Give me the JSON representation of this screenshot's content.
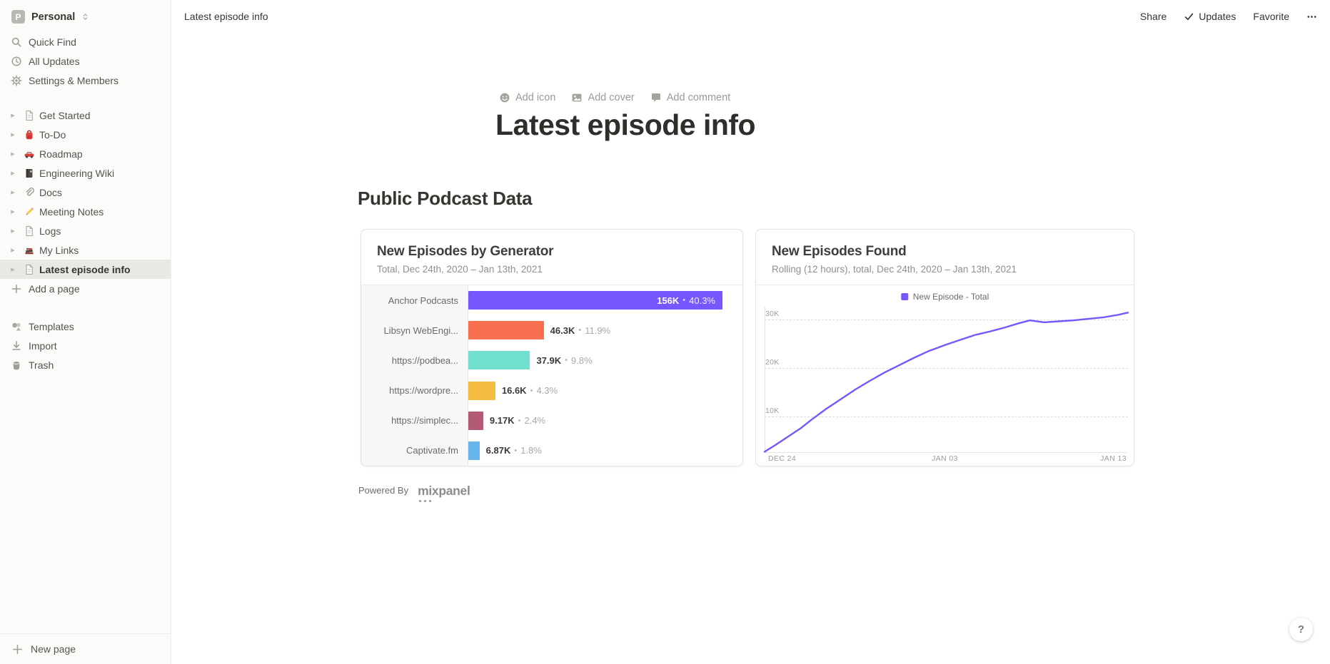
{
  "sidebar": {
    "workspace": {
      "initial": "P",
      "name": "Personal",
      "switcher_icon": "chevron-updown-icon"
    },
    "menu": [
      {
        "icon": "search-icon",
        "label": "Quick Find"
      },
      {
        "icon": "clock-icon",
        "label": "All Updates"
      },
      {
        "icon": "gear-icon",
        "label": "Settings & Members"
      }
    ],
    "pages": [
      {
        "icon": "page-icon",
        "label": "Get Started",
        "selected": false
      },
      {
        "icon": "backpack-icon",
        "label": "To-Do",
        "selected": false
      },
      {
        "icon": "car-icon",
        "label": "Roadmap",
        "selected": false
      },
      {
        "icon": "notebook-icon",
        "label": "Engineering Wiki",
        "selected": false
      },
      {
        "icon": "paperclip-icon",
        "label": "Docs",
        "selected": false
      },
      {
        "icon": "pencil-icon",
        "label": "Meeting Notes",
        "selected": false
      },
      {
        "icon": "page-icon",
        "label": "Logs",
        "selected": false
      },
      {
        "icon": "books-icon",
        "label": "My Links",
        "selected": false
      },
      {
        "icon": "page-icon",
        "label": "Latest episode info",
        "selected": true
      }
    ],
    "add_page": {
      "icon": "plus-icon",
      "label": "Add a page"
    },
    "tools": [
      {
        "icon": "templates-icon",
        "label": "Templates"
      },
      {
        "icon": "import-icon",
        "label": "Import"
      },
      {
        "icon": "trash-icon",
        "label": "Trash"
      }
    ],
    "new_page": {
      "icon": "plus-icon",
      "label": "New page"
    }
  },
  "topbar": {
    "breadcrumb": "Latest episode info",
    "actions": [
      {
        "name": "share",
        "icon": null,
        "label": "Share"
      },
      {
        "name": "updates",
        "icon": "check-icon",
        "label": "Updates"
      },
      {
        "name": "favorite",
        "icon": null,
        "label": "Favorite"
      },
      {
        "name": "more",
        "icon": "more-icon",
        "label": ""
      }
    ]
  },
  "page": {
    "actions": [
      {
        "icon": "smiley-icon",
        "label": "Add icon"
      },
      {
        "icon": "image-icon",
        "label": "Add cover"
      },
      {
        "icon": "comment-icon",
        "label": "Add comment"
      }
    ],
    "title": "Latest episode info",
    "heading": "Public Podcast Data",
    "powered_by": "Powered By",
    "logo_text": "mixpanel"
  },
  "chart_data": [
    {
      "type": "bar",
      "orientation": "horizontal",
      "title": "New Episodes by Generator",
      "subtitle": "Total, Dec 24th, 2020 – Jan 13th, 2021",
      "categories": [
        "Anchor Podcasts",
        "Libsyn WebEngi...",
        "https://podbea...",
        "https://wordpre...",
        "https://simplec...",
        "Captivate.fm"
      ],
      "values": [
        156000,
        46300,
        37900,
        16600,
        9170,
        6870
      ],
      "values_display": [
        "156K",
        "46.3K",
        "37.9K",
        "16.6K",
        "9.17K",
        "6.87K"
      ],
      "percents": [
        "40.3%",
        "11.9%",
        "9.8%",
        "4.3%",
        "2.4%",
        "1.8%"
      ],
      "colors": [
        "#7856ff",
        "#f8704f",
        "#70dfcb",
        "#f5bc42",
        "#b25b72",
        "#68b5ee"
      ],
      "xlabel": "",
      "ylabel": ""
    },
    {
      "type": "line",
      "title": "New Episodes Found",
      "subtitle": "Rolling (12 hours), total, Dec 24th, 2020 – Jan 13th, 2021",
      "legend_position": "top-center",
      "grid": "dashed-horizontal",
      "ylim": [
        0,
        37000
      ],
      "y_ticks": [
        {
          "label": "30K",
          "value": 30000
        },
        {
          "label": "20K",
          "value": 20000
        },
        {
          "label": "10K",
          "value": 10000
        }
      ],
      "x_ticks": [
        {
          "label": "DEC 24",
          "frac": 0
        },
        {
          "label": "JAN 03",
          "frac": 0.5
        },
        {
          "label": "JAN 13",
          "frac": 1
        }
      ],
      "series": [
        {
          "name": "New Episode - Total",
          "color": "#7856ff",
          "x": [
            0,
            0.03,
            0.07,
            0.1,
            0.13,
            0.17,
            0.21,
            0.25,
            0.29,
            0.33,
            0.37,
            0.41,
            0.45,
            0.5,
            0.54,
            0.58,
            0.62,
            0.66,
            0.7,
            0.73,
            0.77,
            0.81,
            0.85,
            0.89,
            0.93,
            0.97,
            1.0
          ],
          "values": [
            2600,
            4000,
            6000,
            7500,
            9300,
            11500,
            13500,
            15500,
            17300,
            19000,
            20500,
            22000,
            23400,
            24800,
            25800,
            26800,
            27500,
            28300,
            29200,
            29800,
            29400,
            29600,
            29800,
            30100,
            30400,
            30900,
            31400
          ]
        }
      ]
    }
  ],
  "help": {
    "label": "?"
  }
}
